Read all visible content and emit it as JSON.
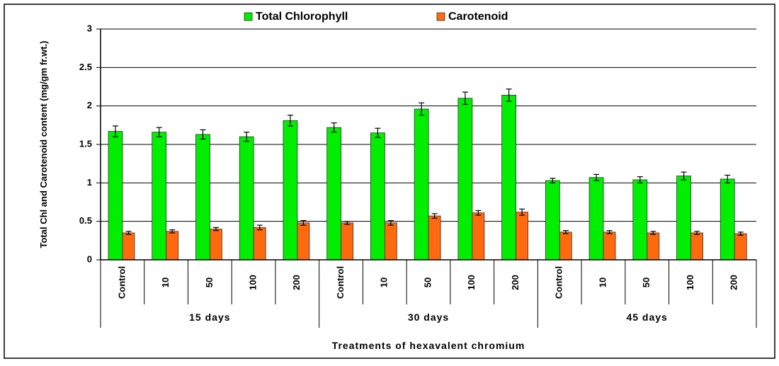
{
  "chart_data": {
    "type": "bar",
    "legend": "top",
    "ylabel": "Total Chl and Carotenoid content (mg/gm fr.wt.)",
    "xlabel": "Treatments of hexavalent chromium",
    "categories": [
      "Control",
      "10",
      "50",
      "100",
      "200",
      "Control",
      "10",
      "50",
      "100",
      "200",
      "Control",
      "10",
      "50",
      "100",
      "200"
    ],
    "groups": [
      "15 days",
      "30 days",
      "45 days"
    ],
    "ylim": [
      0,
      3
    ],
    "yticks": [
      0,
      0.5,
      1,
      1.5,
      2,
      2.5,
      3
    ],
    "grid": true,
    "series": [
      {
        "name": "Total Chlorophyll",
        "color": "#00ee00",
        "values": [
          1.67,
          1.66,
          1.63,
          1.6,
          1.81,
          1.72,
          1.65,
          1.96,
          2.1,
          2.14,
          1.03,
          1.07,
          1.04,
          1.09,
          1.05
        ],
        "errors": [
          0.07,
          0.06,
          0.06,
          0.06,
          0.07,
          0.06,
          0.06,
          0.08,
          0.08,
          0.08,
          0.03,
          0.04,
          0.04,
          0.05,
          0.05
        ]
      },
      {
        "name": "Carotenoid",
        "color": "#ff6a10",
        "values": [
          0.35,
          0.37,
          0.4,
          0.42,
          0.48,
          0.48,
          0.48,
          0.57,
          0.61,
          0.62,
          0.36,
          0.36,
          0.35,
          0.35,
          0.34
        ],
        "errors": [
          0.02,
          0.02,
          0.02,
          0.03,
          0.03,
          0.02,
          0.03,
          0.03,
          0.03,
          0.04,
          0.02,
          0.02,
          0.02,
          0.02,
          0.02
        ]
      }
    ]
  }
}
